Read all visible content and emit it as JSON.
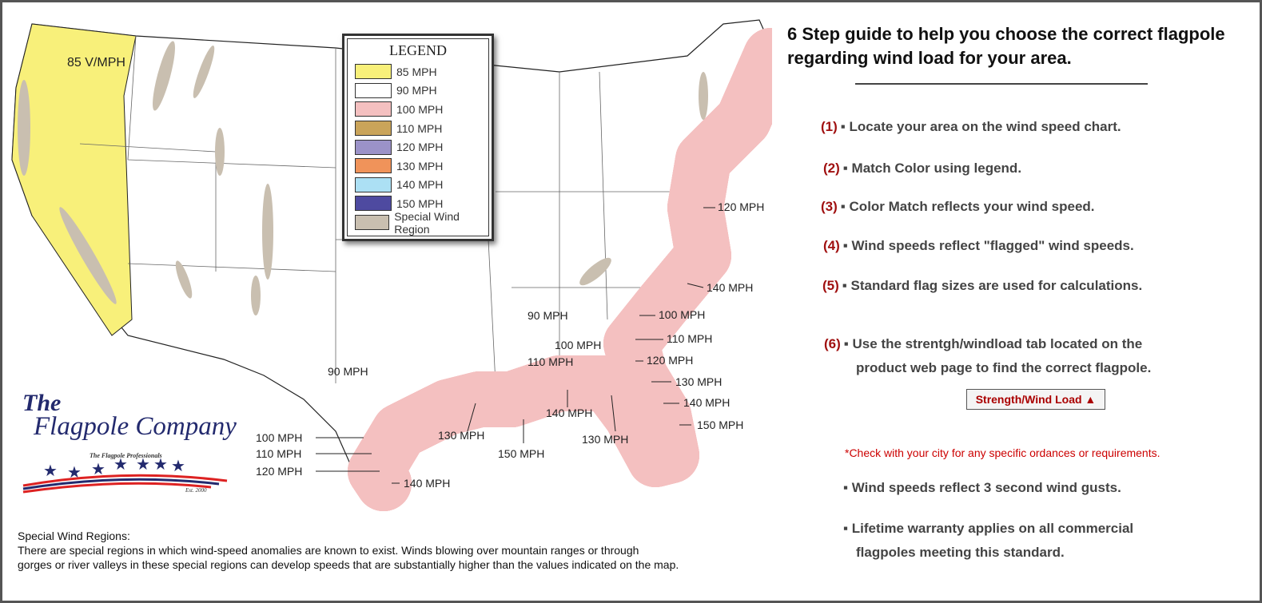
{
  "legend": {
    "title": "LEGEND",
    "items": [
      {
        "label": "85 MPH",
        "color": "#f8f07a"
      },
      {
        "label": "90 MPH",
        "color": "#ffffff"
      },
      {
        "label": "100 MPH",
        "color": "#f4c0c0"
      },
      {
        "label": "110 MPH",
        "color": "#caa45a"
      },
      {
        "label": "120 MPH",
        "color": "#9b92c8"
      },
      {
        "label": "130 MPH",
        "color": "#f0935a"
      },
      {
        "label": "140 MPH",
        "color": "#ace0f4"
      },
      {
        "label": "150 MPH",
        "color": "#4e4aa0"
      },
      {
        "label": "Special Wind Region",
        "color": "#c9bfb0"
      }
    ]
  },
  "map_labels": {
    "nw": "85 V/MPH",
    "inland": "90 MPH",
    "gulf_90": "90 MPH",
    "gulf_100": "100 MPH",
    "gulf_110": "110 MPH",
    "east_120": "120 MPH",
    "east_140": "140 MPH",
    "east_100": "100 MPH",
    "east_110": "110 MPH",
    "east_120b": "120 MPH",
    "fl_130": "130 MPH",
    "fl_140": "140 MPH",
    "fl_150": "150 MPH",
    "tx_100": "100 MPH",
    "tx_110": "110 MPH",
    "tx_120": "120 MPH",
    "tx_140": "140 MPH",
    "la_130": "130 MPH",
    "la_150": "150 MPH",
    "ms_140": "140 MPH",
    "fl_130b": "130 MPH"
  },
  "logo": {
    "line1": "The",
    "line2": "Flagpole Company",
    "tagline": "The Flagpole Professionals",
    "est": "Est. 2000"
  },
  "notes": {
    "title": "Special Wind Regions:",
    "line1": "There are special regions in which wind-speed anomalies are known to exist. Winds blowing over mountain ranges or through",
    "line2": "gorges or river valleys in these special regions can develop speeds that are substantially higher than the values indicated on the map."
  },
  "guide": {
    "title": "6 Step guide to help you choose the correct flagpole regarding wind load for your area.",
    "steps": [
      {
        "num": "(1)",
        "text": "▪ Locate your area on the wind speed chart."
      },
      {
        "num": "(2)",
        "text": "▪ Match Color using legend."
      },
      {
        "num": "(3)",
        "text": "▪ Color Match reflects your wind speed."
      },
      {
        "num": "(4)",
        "text": "▪ Wind speeds reflect \"flagged\" wind speeds."
      },
      {
        "num": "(5)",
        "text": "▪ Standard flag sizes are used for calculations."
      },
      {
        "num": "(6)",
        "text": "▪ Use the strentgh/windload tab located on the"
      }
    ],
    "step6_cont": "product web page to find the correct flagpole.",
    "button": "Strength/Wind Load ▲",
    "disclaimer": "*Check with your city for any specific ordances or requirements.",
    "bullet1": "▪ Wind speeds reflect 3 second wind gusts.",
    "bullet2": "▪ Lifetime warranty applies on all commercial",
    "bullet2_cont": "flagpoles meeting this standard."
  }
}
